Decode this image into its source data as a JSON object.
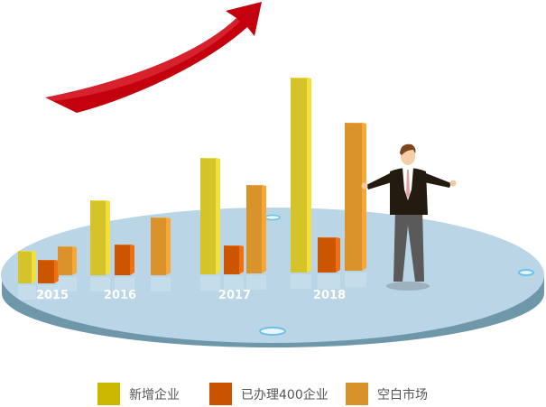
{
  "chart_data": {
    "type": "bar",
    "style": "3d-columns-on-platform",
    "categories": [
      "2015",
      "2016",
      "2017",
      "2018"
    ],
    "series": [
      {
        "name": "新增企业",
        "color": "#D4C42A",
        "values": [
          36,
          83,
          129,
          216
        ]
      },
      {
        "name": "已办理400企业",
        "color": "#CC5500",
        "values": [
          26,
          34,
          32,
          39
        ]
      },
      {
        "name": "空白市场",
        "color": "#DA922A",
        "values": [
          32,
          64,
          98,
          164
        ]
      }
    ],
    "value_note_hidden": true,
    "legend_position": "bottom",
    "grid": false,
    "decorations": [
      "red-rising-arrow",
      "businessman-figure",
      "oval-platform"
    ]
  },
  "legend": [
    {
      "label": "新增企业",
      "color": "#CDB800"
    },
    {
      "label": "已办理400企业",
      "color": "#C95300"
    },
    {
      "label": "空白市场",
      "color": "#D8922A"
    }
  ]
}
